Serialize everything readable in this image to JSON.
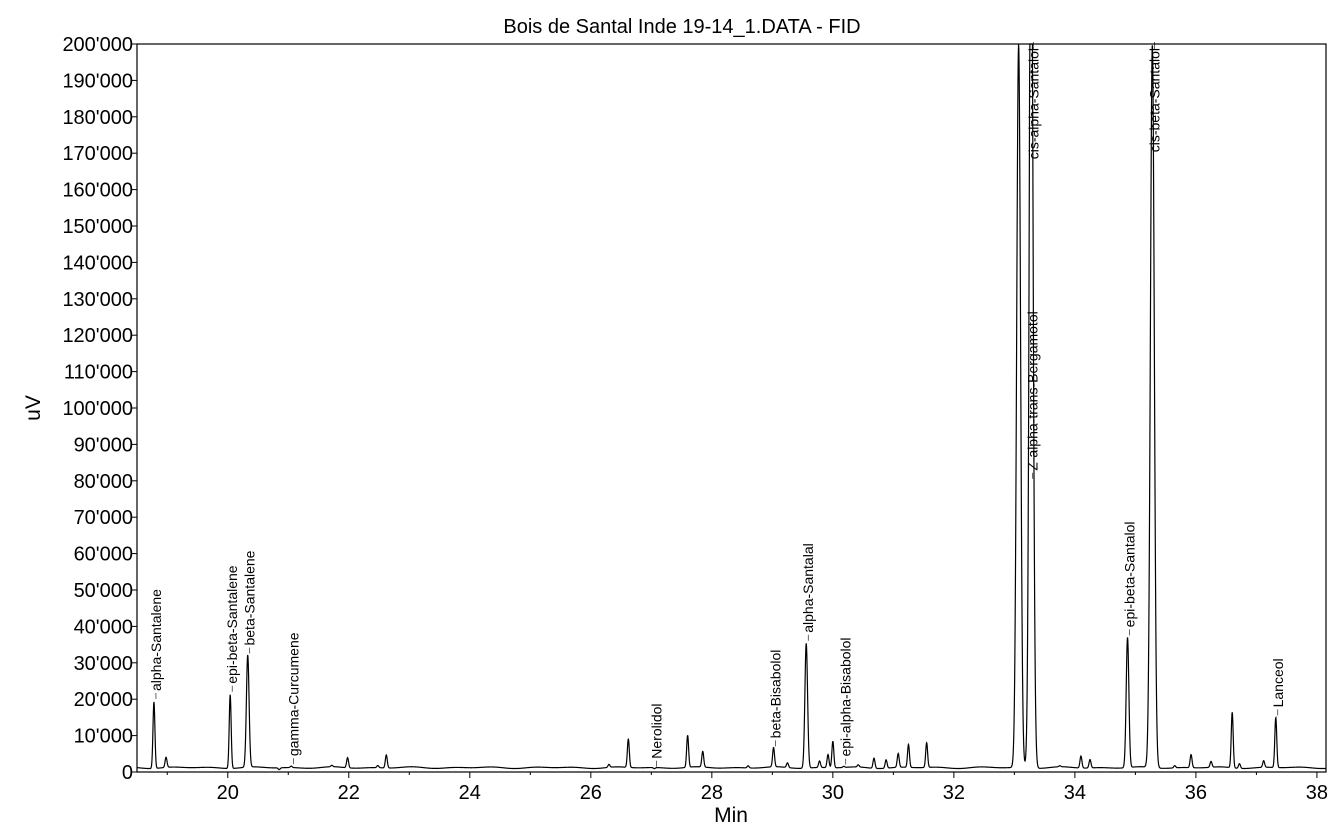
{
  "chart_data": {
    "type": "line",
    "title": "Bois de Santal Inde 19-14_1.DATA - FID",
    "xlabel": "Min",
    "ylabel": "uV",
    "xlim": [
      18.5,
      38.15
    ],
    "ylim": [
      0,
      200000
    ],
    "xticks": [
      20,
      22,
      24,
      26,
      28,
      30,
      32,
      34,
      36,
      38
    ],
    "yticks": [
      0,
      10000,
      20000,
      30000,
      40000,
      50000,
      60000,
      70000,
      80000,
      90000,
      100000,
      110000,
      120000,
      130000,
      140000,
      150000,
      160000,
      170000,
      180000,
      190000,
      200000
    ],
    "ytick_labels": [
      "0",
      "10'000",
      "20'000",
      "30'000",
      "40'000",
      "50'000",
      "60'000",
      "70'000",
      "80'000",
      "90'000",
      "100'000",
      "110'000",
      "120'000",
      "130'000",
      "140'000",
      "150'000",
      "160'000",
      "170'000",
      "180'000",
      "190'000",
      "200'000"
    ],
    "grid": false,
    "baseline": 1200,
    "series": [
      {
        "color": "#000000",
        "peaks": [
          {
            "rt": 18.78,
            "height": 19500,
            "name": "alpha-Santalene"
          },
          {
            "rt": 18.98,
            "height": 4000
          },
          {
            "rt": 20.04,
            "height": 21500,
            "name": "epi-beta-Santalene"
          },
          {
            "rt": 20.33,
            "height": 32000,
            "name": "beta-Santalene"
          },
          {
            "rt": 20.85,
            "height": 700
          },
          {
            "rt": 21.05,
            "height": 1600,
            "name": "gamma-Curcumene"
          },
          {
            "rt": 21.72,
            "height": 1600
          },
          {
            "rt": 21.98,
            "height": 4000
          },
          {
            "rt": 22.48,
            "height": 1800
          },
          {
            "rt": 22.62,
            "height": 4800
          },
          {
            "rt": 26.3,
            "height": 2000
          },
          {
            "rt": 26.62,
            "height": 9000
          },
          {
            "rt": 27.05,
            "height": 900,
            "name": "Nerolidol"
          },
          {
            "rt": 27.6,
            "height": 10000
          },
          {
            "rt": 27.85,
            "height": 5500
          },
          {
            "rt": 28.6,
            "height": 1800
          },
          {
            "rt": 29.02,
            "height": 6500,
            "name": "beta-Bisabolol"
          },
          {
            "rt": 29.25,
            "height": 2500
          },
          {
            "rt": 29.56,
            "height": 35500,
            "name": "alpha-Santalal"
          },
          {
            "rt": 29.78,
            "height": 3000
          },
          {
            "rt": 29.92,
            "height": 4800
          },
          {
            "rt": 30.0,
            "height": 8500
          },
          {
            "rt": 30.18,
            "height": 1500,
            "name": "epi-alpha-Bisabolol"
          },
          {
            "rt": 30.42,
            "height": 1800
          },
          {
            "rt": 30.68,
            "height": 4000
          },
          {
            "rt": 30.88,
            "height": 3500
          },
          {
            "rt": 31.08,
            "height": 5000
          },
          {
            "rt": 31.25,
            "height": 7500
          },
          {
            "rt": 31.55,
            "height": 8000
          },
          {
            "rt": 33.07,
            "height": 200000
          },
          {
            "rt": 33.27,
            "height": 80000,
            "name": "Z-alpha-trans-Bergamotol"
          },
          {
            "rt": 33.28,
            "height": 200000,
            "name": "cis-alpha-Santalol"
          },
          {
            "rt": 33.75,
            "height": 1500
          },
          {
            "rt": 34.1,
            "height": 4500
          },
          {
            "rt": 34.25,
            "height": 3500
          },
          {
            "rt": 34.87,
            "height": 37000,
            "name": "epi-beta-Santalol"
          },
          {
            "rt": 35.28,
            "height": 200000,
            "name": "cis-beta-Santalol"
          },
          {
            "rt": 35.65,
            "height": 1800
          },
          {
            "rt": 35.92,
            "height": 4800
          },
          {
            "rt": 36.25,
            "height": 2800
          },
          {
            "rt": 36.6,
            "height": 16500
          },
          {
            "rt": 36.72,
            "height": 2500
          },
          {
            "rt": 37.12,
            "height": 3000
          },
          {
            "rt": 37.32,
            "height": 15000,
            "name": "Lanceol"
          },
          {
            "rt": 37.7,
            "height": 1200
          }
        ]
      }
    ]
  }
}
